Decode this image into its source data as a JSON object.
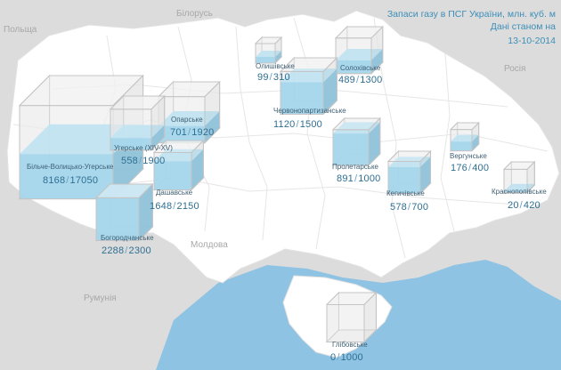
{
  "title": {
    "line1": "Запаси газу в ПСГ України, млн. куб. м",
    "line2": "Дані станом на",
    "date": "13-10-2014"
  },
  "countries": {
    "poland": "Польща",
    "belarus": "Білорусь",
    "russia": "Росія",
    "moldova": "Молдова",
    "romania": "Румунія"
  },
  "colors": {
    "sea": "#8fc3e3",
    "land": "#ffffff",
    "neighbors": "#dcdcdc",
    "gas_fill": "#7cc8ea",
    "capacity_outline": "#c4c4c4"
  },
  "storages": [
    {
      "name": "Більче-Волицько-Угерське",
      "stock": "8168",
      "capacity": "17050"
    },
    {
      "name": "Опарське",
      "stock": "701",
      "capacity": "1920"
    },
    {
      "name": "Угерське (XIV-XV)",
      "stock": "558",
      "capacity": "1900"
    },
    {
      "name": "Дашавське",
      "stock": "1648",
      "capacity": "2150"
    },
    {
      "name": "Богородчанське",
      "stock": "2288",
      "capacity": "2300"
    },
    {
      "name": "Олишівське",
      "stock": "99",
      "capacity": "310"
    },
    {
      "name": "Солохівське",
      "stock": "489",
      "capacity": "1300"
    },
    {
      "name": "Червонопартизанське",
      "stock": "1120",
      "capacity": "1500"
    },
    {
      "name": "Пролетарське",
      "stock": "891",
      "capacity": "1000"
    },
    {
      "name": "Кегичівське",
      "stock": "578",
      "capacity": "700"
    },
    {
      "name": "Вергунське",
      "stock": "176",
      "capacity": "400"
    },
    {
      "name": "Краснопопівське",
      "stock": "20",
      "capacity": "420"
    },
    {
      "name": "Глібовське",
      "stock": "0",
      "capacity": "1000"
    }
  ]
}
